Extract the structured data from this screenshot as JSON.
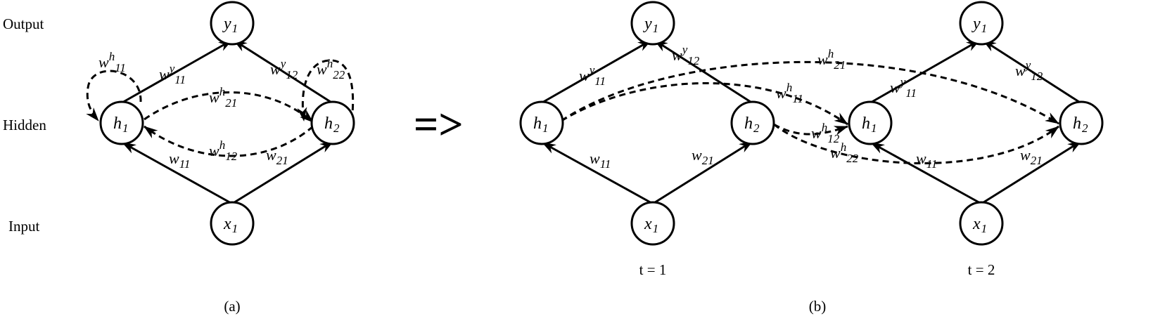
{
  "row_labels": {
    "output": "Output",
    "hidden": "Hidden",
    "input": "Input"
  },
  "nodes": {
    "y1": {
      "base": "y",
      "sub": "1"
    },
    "h1": {
      "base": "h",
      "sub": "1"
    },
    "h2": {
      "base": "h",
      "sub": "2"
    },
    "x1": {
      "base": "x",
      "sub": "1"
    }
  },
  "weights": {
    "w11": {
      "base": "w",
      "sup": "",
      "sub": "11"
    },
    "w21": {
      "base": "w",
      "sup": "",
      "sub": "21"
    },
    "wy11": {
      "base": "w",
      "sup": "y",
      "sub": "11"
    },
    "wy12": {
      "base": "w",
      "sup": "y",
      "sub": "12"
    },
    "wh11": {
      "base": "w",
      "sup": "h",
      "sub": "11"
    },
    "wh22": {
      "base": "w",
      "sup": "h",
      "sub": "22"
    },
    "wh21": {
      "base": "w",
      "sup": "h",
      "sub": "21"
    },
    "wh12": {
      "base": "w",
      "sup": "h",
      "sub": "12"
    }
  },
  "arrow": "=>",
  "time_labels": {
    "t1": "t = 1",
    "t2": "t = 2"
  },
  "captions": {
    "a": "(a)",
    "b": "(b)"
  }
}
